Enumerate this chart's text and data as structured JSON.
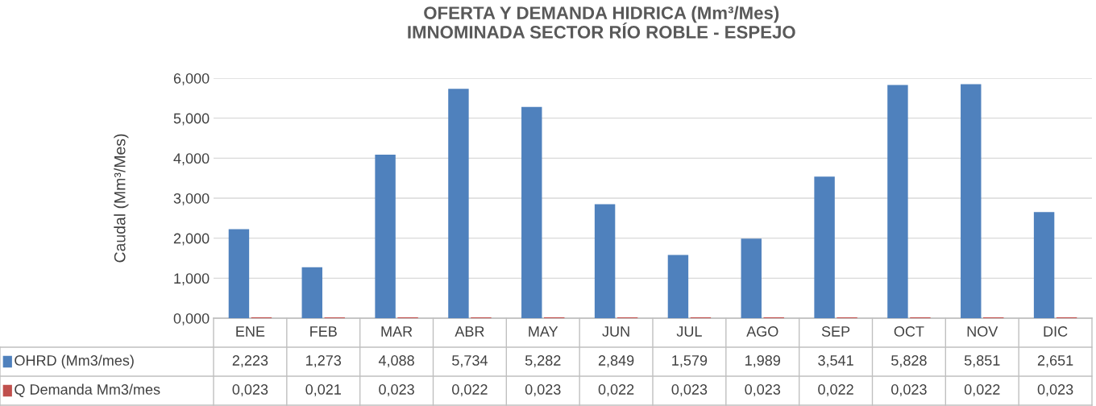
{
  "chart_data": {
    "type": "bar",
    "title": "OFERTA Y DEMANDA HIDRICA (Mm³/Mes)\nIMNOMINADA SECTOR RÍO ROBLE - ESPEJO",
    "ylabel": "Caudal (Mm³/Mes)",
    "categories": [
      "ENE",
      "FEB",
      "MAR",
      "ABR",
      "MAY",
      "JUN",
      "JUL",
      "AGO",
      "SEP",
      "OCT",
      "NOV",
      "DIC"
    ],
    "series": [
      {
        "name": "OHRD (Mm3/mes)",
        "color": "#4f81bd",
        "values": [
          2.223,
          1.273,
          4.088,
          5.734,
          5.282,
          2.849,
          1.579,
          1.989,
          3.541,
          5.828,
          5.851,
          2.651
        ],
        "value_labels": [
          "2,223",
          "1,273",
          "4,088",
          "5,734",
          "5,282",
          "2,849",
          "1,579",
          "1,989",
          "3,541",
          "5,828",
          "5,851",
          "2,651"
        ]
      },
      {
        "name": "Q Demanda Mm3/mes",
        "color": "#c0504d",
        "values": [
          0.023,
          0.021,
          0.023,
          0.022,
          0.023,
          0.022,
          0.023,
          0.023,
          0.022,
          0.023,
          0.022,
          0.023
        ],
        "value_labels": [
          "0,023",
          "0,021",
          "0,023",
          "0,022",
          "0,023",
          "0,022",
          "0,023",
          "0,023",
          "0,022",
          "0,023",
          "0,022",
          "0,023"
        ]
      }
    ],
    "ylim": [
      0,
      6
    ],
    "yticks": [
      {
        "value": 0,
        "label": "0,000"
      },
      {
        "value": 1,
        "label": "1,000"
      },
      {
        "value": 2,
        "label": "2,000"
      },
      {
        "value": 3,
        "label": "3,000"
      },
      {
        "value": 4,
        "label": "4,000"
      },
      {
        "value": 5,
        "label": "5,000"
      },
      {
        "value": 6,
        "label": "6,000"
      }
    ],
    "grid": "y",
    "legend": "bottom"
  }
}
